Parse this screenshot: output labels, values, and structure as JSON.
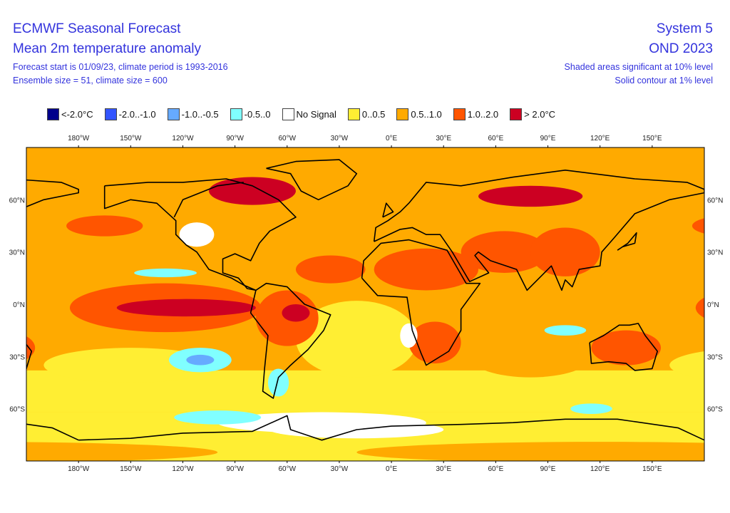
{
  "header": {
    "title": "ECMWF Seasonal Forecast",
    "subtitle": "Mean 2m temperature anomaly",
    "forecast_info": "Forecast start is 01/09/23, climate period is 1993-2016",
    "ensemble_info": "Ensemble size = 51, climate size = 600",
    "system": "System 5",
    "period": "OND 2023",
    "significance_shaded": "Shaded areas significant at 10% level",
    "significance_contour": "Solid contour at 1% level"
  },
  "legend": [
    {
      "label": "<-2.0°C",
      "color": "#00008b"
    },
    {
      "label": "-2.0..-1.0",
      "color": "#3355ff"
    },
    {
      "label": "-1.0..-0.5",
      "color": "#66aaff"
    },
    {
      "label": "-0.5..0",
      "color": "#80ffff"
    },
    {
      "label": "No Signal",
      "color": "#ffffff"
    },
    {
      "label": "0..0.5",
      "color": "#ffee33"
    },
    {
      "label": "0.5..1.0",
      "color": "#ffaa00"
    },
    {
      "label": "1.0..2.0",
      "color": "#ff5500"
    },
    {
      "label": "> 2.0°C",
      "color": "#cc0022"
    }
  ],
  "map": {
    "projection": "equirectangular",
    "lon_ticks": [
      "180°W",
      "150°W",
      "120°W",
      "90°W",
      "60°W",
      "30°W",
      "0°E",
      "30°E",
      "60°E",
      "90°E",
      "120°E",
      "150°E"
    ],
    "lat_ticks": [
      "60°N",
      "30°N",
      "0°N",
      "30°S",
      "60°S"
    ]
  }
}
